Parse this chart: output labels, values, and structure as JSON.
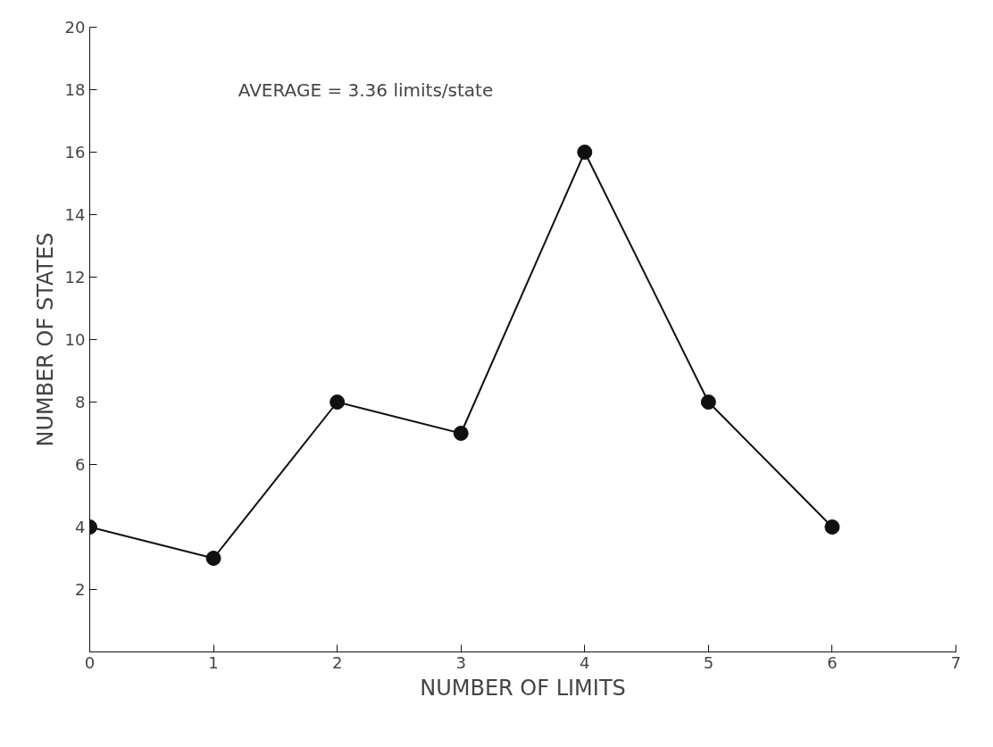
{
  "chart_data": {
    "type": "line",
    "xlabel": "NUMBER OF LIMITS",
    "ylabel": "NUMBER OF STATES",
    "annotations": [
      "AVERAGE = 3.36 limits/state"
    ],
    "x": [
      0,
      1,
      2,
      3,
      4,
      5,
      6
    ],
    "series": [
      {
        "color": "#111111",
        "values": [
          4,
          3,
          8,
          7,
          16,
          8,
          4
        ]
      }
    ],
    "xlim": [
      0,
      7
    ],
    "xticks": [
      0,
      1,
      2,
      3,
      4,
      5,
      6,
      7
    ],
    "ylim": [
      0,
      20
    ],
    "yticks": [
      2,
      4,
      6,
      8,
      10,
      12,
      14,
      16,
      18,
      20
    ],
    "grid": false,
    "marker": "circle",
    "line_style": "solid"
  }
}
